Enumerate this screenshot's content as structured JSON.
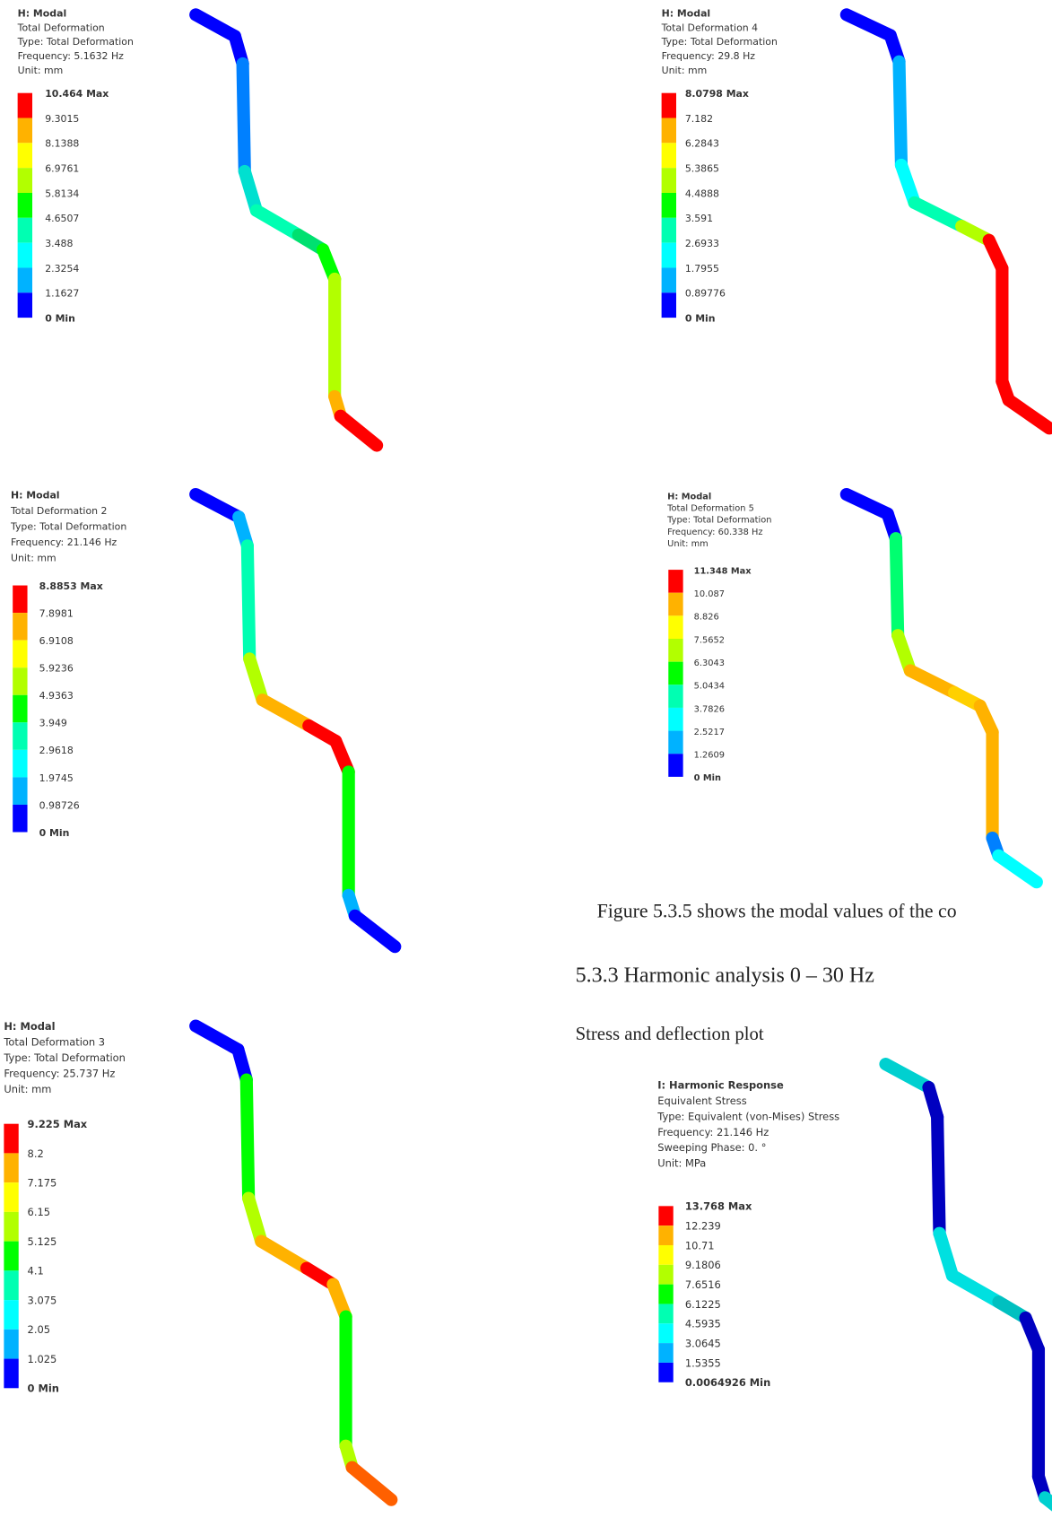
{
  "panels": [
    {
      "header": "H: Modal",
      "lines": [
        "Total Deformation",
        "Type: Total Deformation",
        "Frequency: 5.1632 Hz",
        "Unit: mm"
      ],
      "legend": [
        "10.464 Max",
        "9.3015",
        "8.1388",
        "6.9761",
        "5.8134",
        "4.6507",
        "3.488",
        "2.3254",
        "1.1627",
        "0 Min"
      ]
    },
    {
      "header": "H: Modal",
      "lines": [
        "Total Deformation 4",
        "Type: Total Deformation",
        "Frequency: 29.8 Hz",
        "Unit: mm"
      ],
      "legend": [
        "8.0798 Max",
        "7.182",
        "6.2843",
        "5.3865",
        "4.4888",
        "3.591",
        "2.6933",
        "1.7955",
        "0.89776",
        "0 Min"
      ]
    },
    {
      "header": "H: Modal",
      "lines": [
        "Total Deformation 2",
        "Type: Total Deformation",
        "Frequency: 21.146 Hz",
        "Unit: mm"
      ],
      "legend": [
        "8.8853 Max",
        "7.8981",
        "6.9108",
        "5.9236",
        "4.9363",
        "3.949",
        "2.9618",
        "1.9745",
        "0.98726",
        "0 Min"
      ]
    },
    {
      "header": "H: Modal",
      "lines": [
        "Total Deformation 5",
        "Type: Total Deformation",
        "Frequency: 60.338 Hz",
        "Unit: mm"
      ],
      "legend": [
        "11.348 Max",
        "10.087",
        "8.826",
        "7.5652",
        "6.3043",
        "5.0434",
        "3.7826",
        "2.5217",
        "1.2609",
        "0 Min"
      ]
    },
    {
      "header": "H: Modal",
      "lines": [
        "Total Deformation 3",
        "Type: Total Deformation",
        "Frequency: 25.737 Hz",
        "Unit: mm"
      ],
      "legend": [
        "9.225 Max",
        "8.2",
        "7.175",
        "6.15",
        "5.125",
        "4.1",
        "3.075",
        "2.05",
        "1.025",
        "0 Min"
      ]
    },
    {
      "header": "I: Harmonic Response",
      "lines": [
        "Equivalent Stress",
        "Type: Equivalent (von-Mises) Stress",
        "Frequency: 21.146 Hz",
        "Sweeping Phase: 0. °",
        "Unit: MPa"
      ],
      "legend": [
        "13.768 Max",
        "12.239",
        "10.71",
        "9.1806",
        "7.6516",
        "6.1225",
        "4.5935",
        "3.0645",
        "1.5355",
        "0.0064926 Min"
      ]
    }
  ],
  "text": {
    "figure_note": "Figure 5.3.5 shows the modal values of the co",
    "section_heading": "5.3.3 Harmonic analysis 0 – 30 Hz",
    "subheading": "Stress and deflection plot"
  }
}
